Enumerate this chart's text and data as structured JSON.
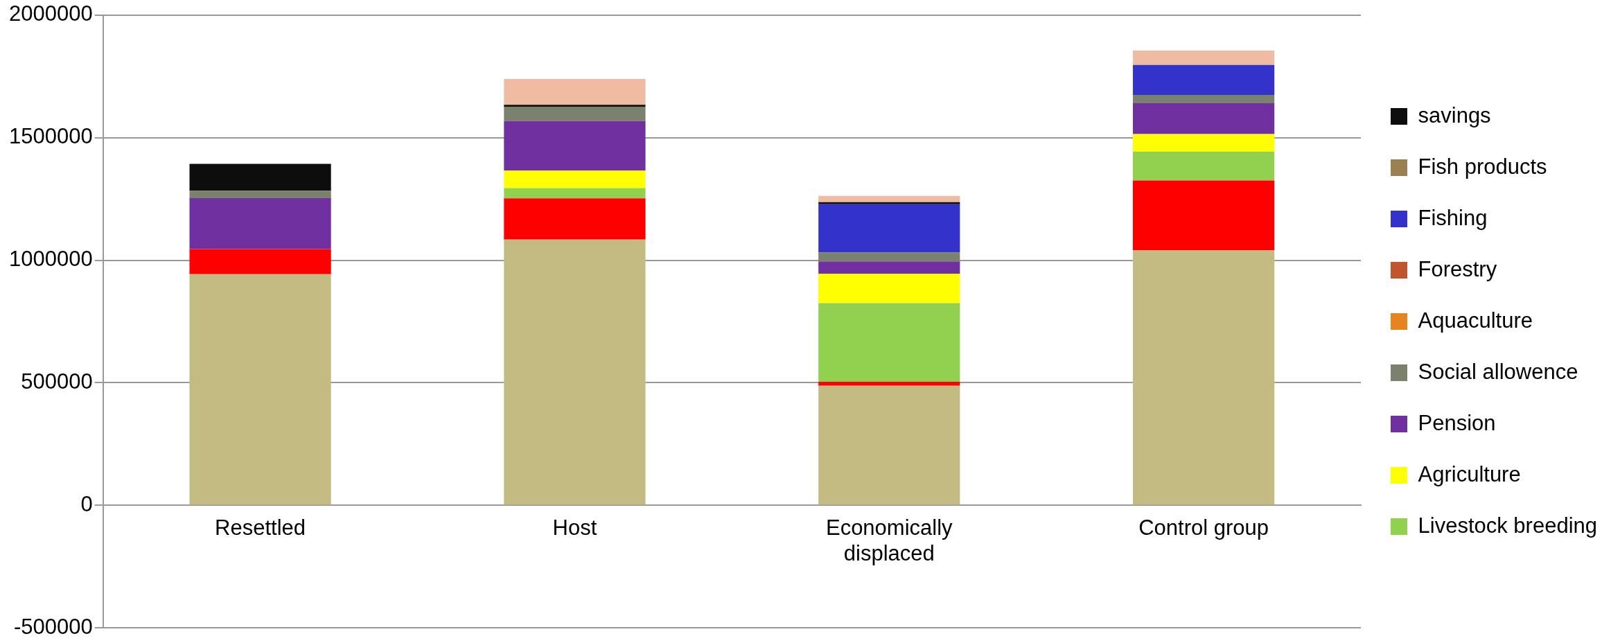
{
  "chart_data": {
    "type": "bar",
    "stacked": true,
    "categories": [
      "Resettled",
      "Host",
      "Economically displaced",
      "Control group"
    ],
    "series": [
      {
        "color": "#c3bb81",
        "values": [
          943000,
          1084000,
          488000,
          1041000
        ]
      },
      {
        "color": "#ff0000",
        "values": [
          102000,
          168000,
          16000,
          284000
        ]
      },
      {
        "name": "Livestock breeding",
        "color": "#92d050",
        "values": [
          0,
          42000,
          321000,
          118000
        ]
      },
      {
        "name": "Agriculture",
        "color": "#ffff00",
        "values": [
          0,
          71000,
          120000,
          71000
        ]
      },
      {
        "name": "Pension",
        "color": "#7030a0",
        "values": [
          208000,
          202000,
          50000,
          126000
        ]
      },
      {
        "name": "Social allowence",
        "color": "#7a816c",
        "values": [
          30000,
          59000,
          36000,
          34000
        ]
      },
      {
        "name": "Aquaculture",
        "color": "#e6851f",
        "values": [
          0,
          0,
          0,
          0
        ]
      },
      {
        "name": "Forestry",
        "color": "#c0562b",
        "values": [
          0,
          0,
          0,
          0
        ]
      },
      {
        "name": "Fishing",
        "color": "#3333cc",
        "values": [
          0,
          0,
          197000,
          122000
        ]
      },
      {
        "name": "Fish products",
        "color": "#9b8152",
        "values": [
          0,
          0,
          0,
          0
        ]
      },
      {
        "name": "savings",
        "color": "#0d0d0d",
        "values": [
          110000,
          8000,
          9000,
          0
        ]
      },
      {
        "color": "#efbba2",
        "values": [
          0,
          105000,
          25000,
          59000
        ]
      }
    ],
    "ylim": [
      -500000,
      2000000
    ],
    "yticks": [
      -500000,
      0,
      500000,
      1000000,
      1500000,
      2000000
    ],
    "grid": "y",
    "legend": "right"
  }
}
